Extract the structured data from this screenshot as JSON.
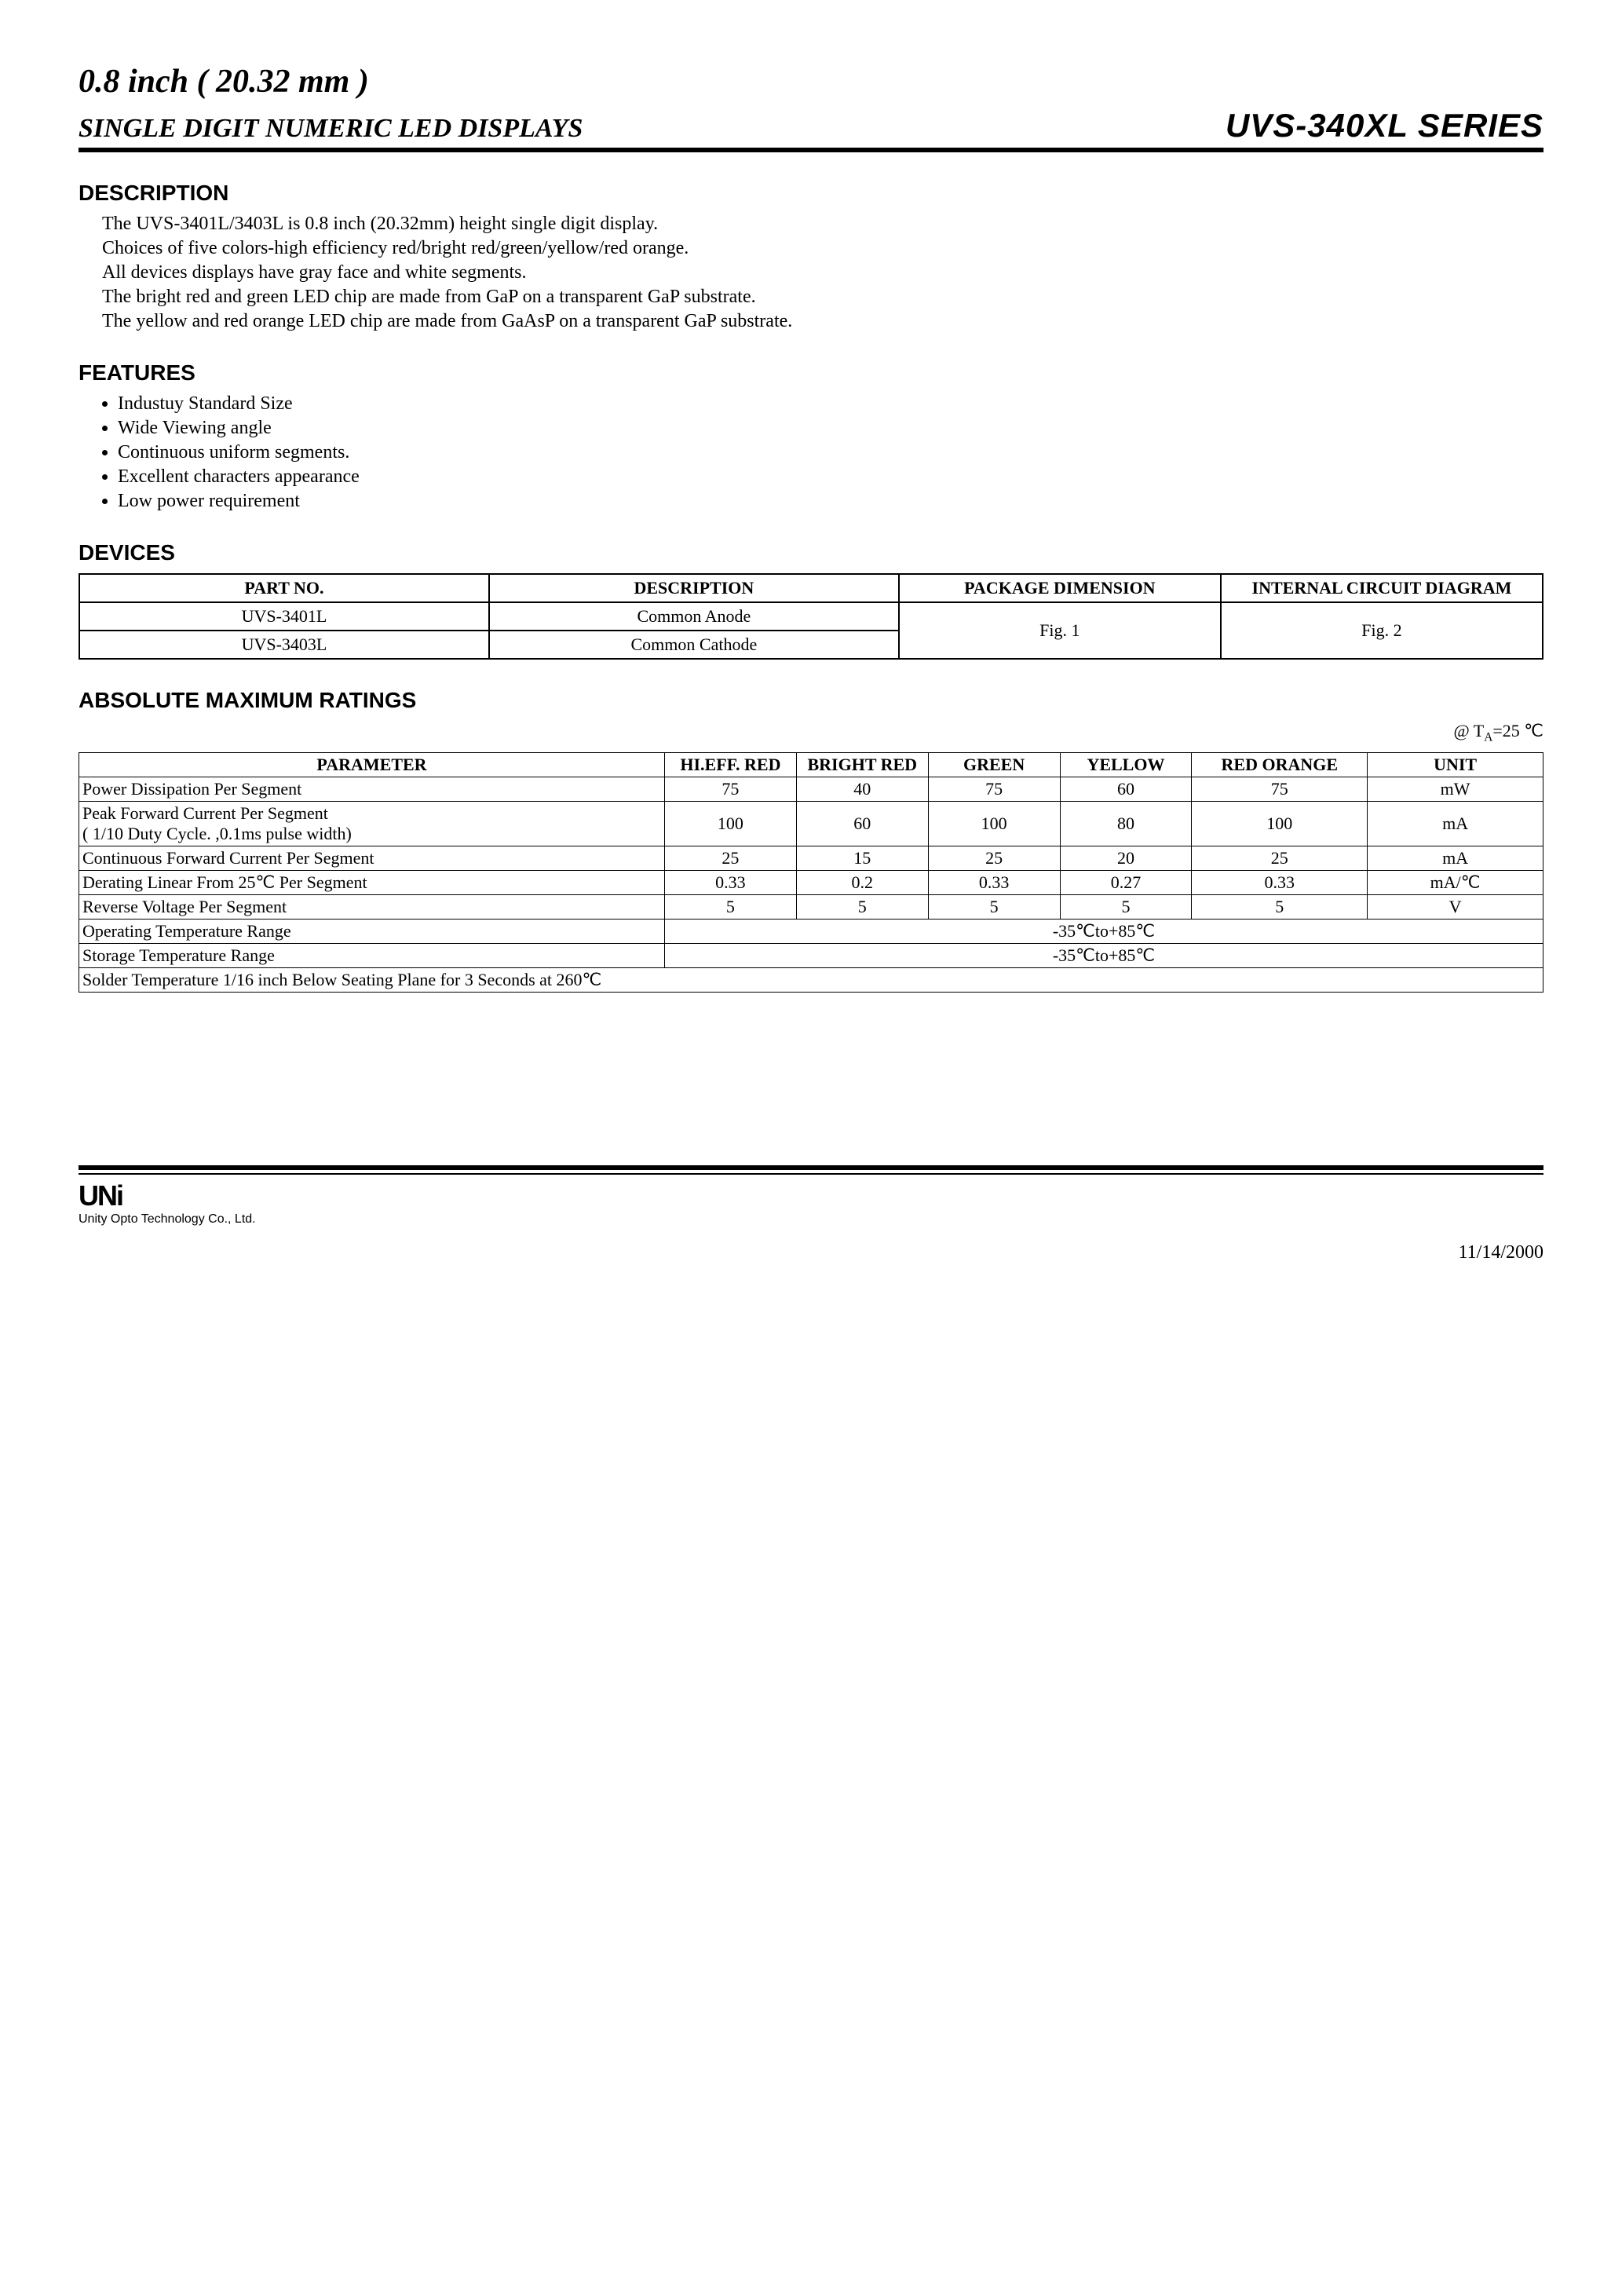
{
  "title": {
    "line1": "0.8 inch ( 20.32 mm )",
    "sub": "SINGLE DIGIT NUMERIC LED DISPLAYS",
    "series": "UVS-340XL  SERIES"
  },
  "sections": {
    "description": {
      "heading": "DESCRIPTION",
      "lines": [
        "The UVS-3401L/3403L is 0.8 inch (20.32mm) height single digit display.",
        "Choices of five colors-high efficiency red/bright red/green/yellow/red orange.",
        "All devices displays have gray face and white segments.",
        "The bright red and green LED chip are made from GaP on a transparent GaP substrate.",
        "The yellow and red orange LED chip are made from GaAsP on a transparent GaP substrate."
      ]
    },
    "features": {
      "heading": "FEATURES",
      "items": [
        "Industuy Standard Size",
        "Wide Viewing angle",
        "Continuous uniform segments.",
        "Excellent characters appearance",
        "Low power requirement"
      ]
    },
    "devices": {
      "heading": "DEVICES",
      "columns": [
        "PART NO.",
        "DESCRIPTION",
        "PACKAGE DIMENSION",
        "INTERNAL CIRCUIT DIAGRAM"
      ],
      "rows": [
        {
          "part": "UVS-3401L",
          "desc": "Common Anode"
        },
        {
          "part": "UVS-3403L",
          "desc": "Common Cathode"
        }
      ],
      "pkg": "Fig. 1",
      "diagram": "Fig. 2"
    },
    "ratings": {
      "heading": "ABSOLUTE MAXIMUM RATINGS",
      "note_prefix": "@ T",
      "note_sub": "A",
      "note_suffix": "=25 ℃",
      "columns": [
        "PARAMETER",
        "HI.EFF. RED",
        "BRIGHT RED",
        "GREEN",
        "YELLOW",
        "RED ORANGE",
        "UNIT"
      ],
      "rows": [
        {
          "param": "Power Dissipation Per Segment",
          "v": [
            "75",
            "40",
            "75",
            "60",
            "75"
          ],
          "unit": "mW"
        },
        {
          "param": "Peak Forward Current Per Segment\n( 1/10  Duty Cycle. ,0.1ms pulse width)",
          "v": [
            "100",
            "60",
            "100",
            "80",
            "100"
          ],
          "unit": "mA"
        },
        {
          "param": "Continuous Forward Current Per Segment",
          "v": [
            "25",
            "15",
            "25",
            "20",
            "25"
          ],
          "unit": "mA"
        },
        {
          "param": "Derating Linear From 25℃ Per Segment",
          "v": [
            "0.33",
            "0.2",
            "0.33",
            "0.27",
            "0.33"
          ],
          "unit": "mA/℃"
        },
        {
          "param": "Reverse Voltage Per Segment",
          "v": [
            "5",
            "5",
            "5",
            "5",
            "5"
          ],
          "unit": "V"
        }
      ],
      "span_rows": [
        {
          "param": "Operating Temperature Range",
          "value": "-35℃to+85℃"
        },
        {
          "param": "Storage Temperature Range",
          "value": "-35℃to+85℃"
        }
      ],
      "full_row": "Solder Temperature 1/16 inch Below Seating Plane for 3 Seconds at 260℃"
    }
  },
  "footer": {
    "logo": "UNi",
    "company": "Unity Opto Technology Co., Ltd.",
    "date": "11/14/2000"
  }
}
